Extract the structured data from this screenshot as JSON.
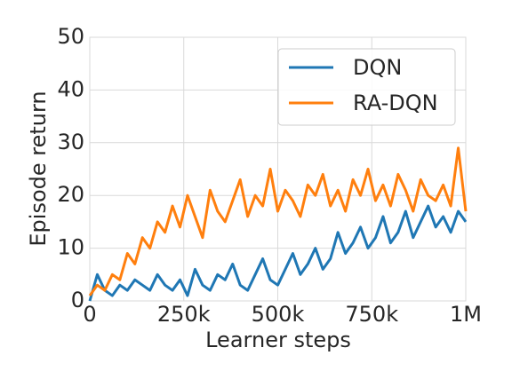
{
  "chart_data": {
    "type": "line",
    "xlabel": "Learner steps",
    "ylabel": "Episode return",
    "x": [
      0,
      20000,
      40000,
      60000,
      80000,
      100000,
      120000,
      140000,
      160000,
      180000,
      200000,
      220000,
      240000,
      260000,
      280000,
      300000,
      320000,
      340000,
      360000,
      380000,
      400000,
      420000,
      440000,
      460000,
      480000,
      500000,
      520000,
      540000,
      560000,
      580000,
      600000,
      620000,
      640000,
      660000,
      680000,
      700000,
      720000,
      740000,
      760000,
      780000,
      800000,
      820000,
      840000,
      860000,
      880000,
      900000,
      920000,
      940000,
      960000,
      980000,
      1000000
    ],
    "series": [
      {
        "name": "DQN",
        "color": "#1f77b4",
        "values": [
          0,
          5,
          2,
          1,
          3,
          2,
          4,
          3,
          2,
          5,
          3,
          2,
          4,
          1,
          6,
          3,
          2,
          5,
          4,
          7,
          3,
          2,
          5,
          8,
          4,
          3,
          6,
          9,
          5,
          7,
          10,
          6,
          8,
          13,
          9,
          11,
          14,
          10,
          12,
          16,
          11,
          13,
          17,
          12,
          15,
          18,
          14,
          16,
          13,
          17,
          15
        ]
      },
      {
        "name": "RA-DQN",
        "color": "#ff7f0e",
        "values": [
          1,
          3,
          2,
          5,
          4,
          9,
          7,
          12,
          10,
          15,
          13,
          18,
          14,
          20,
          16,
          12,
          21,
          17,
          15,
          19,
          23,
          16,
          20,
          18,
          25,
          17,
          21,
          19,
          16,
          22,
          20,
          24,
          18,
          21,
          17,
          23,
          20,
          25,
          19,
          22,
          18,
          24,
          21,
          17,
          23,
          20,
          19,
          22,
          18,
          29,
          17
        ]
      }
    ],
    "xlim": [
      0,
      1000000
    ],
    "xticks": [
      0,
      {
        "value": 250000,
        "label": "250k"
      },
      {
        "value": 500000,
        "label": "500k"
      },
      {
        "value": 750000,
        "label": "750k"
      },
      {
        "value": 1000000,
        "label": "1M"
      }
    ],
    "ylim": [
      0,
      50
    ],
    "yticks": [
      0,
      10,
      20,
      30,
      40,
      50
    ],
    "grid": true,
    "legend": "upper right"
  }
}
